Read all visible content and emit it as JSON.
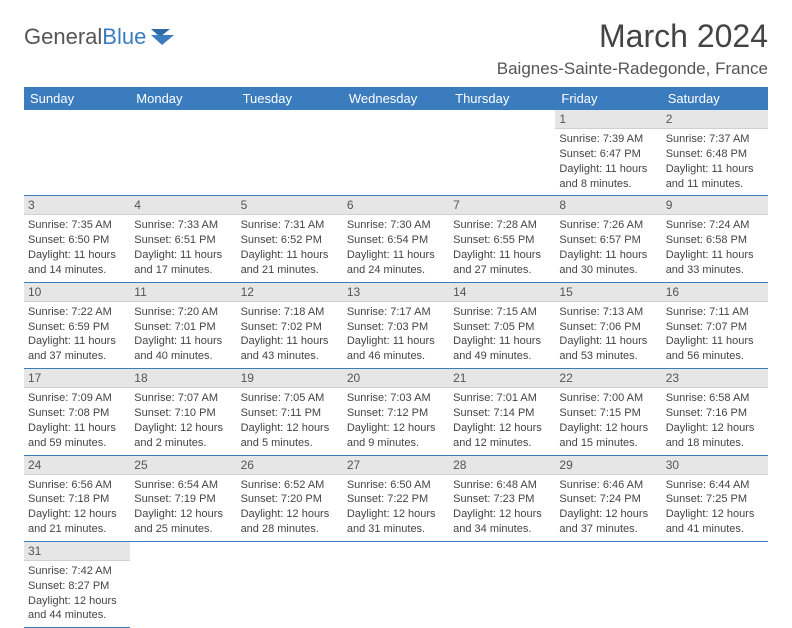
{
  "brand": {
    "part1": "General",
    "part2": "Blue"
  },
  "title": "March 2024",
  "location": "Baignes-Sainte-Radegonde, France",
  "colors": {
    "header_bg": "#3b7cbf",
    "header_fg": "#ffffff",
    "daynum_bg": "#e6e6e6",
    "row_border": "#3b7cbf",
    "text": "#444444"
  },
  "weekdays": [
    "Sunday",
    "Monday",
    "Tuesday",
    "Wednesday",
    "Thursday",
    "Friday",
    "Saturday"
  ],
  "days": [
    {
      "n": 1,
      "sunrise": "7:39 AM",
      "sunset": "6:47 PM",
      "daylight": "11 hours and 8 minutes."
    },
    {
      "n": 2,
      "sunrise": "7:37 AM",
      "sunset": "6:48 PM",
      "daylight": "11 hours and 11 minutes."
    },
    {
      "n": 3,
      "sunrise": "7:35 AM",
      "sunset": "6:50 PM",
      "daylight": "11 hours and 14 minutes."
    },
    {
      "n": 4,
      "sunrise": "7:33 AM",
      "sunset": "6:51 PM",
      "daylight": "11 hours and 17 minutes."
    },
    {
      "n": 5,
      "sunrise": "7:31 AM",
      "sunset": "6:52 PM",
      "daylight": "11 hours and 21 minutes."
    },
    {
      "n": 6,
      "sunrise": "7:30 AM",
      "sunset": "6:54 PM",
      "daylight": "11 hours and 24 minutes."
    },
    {
      "n": 7,
      "sunrise": "7:28 AM",
      "sunset": "6:55 PM",
      "daylight": "11 hours and 27 minutes."
    },
    {
      "n": 8,
      "sunrise": "7:26 AM",
      "sunset": "6:57 PM",
      "daylight": "11 hours and 30 minutes."
    },
    {
      "n": 9,
      "sunrise": "7:24 AM",
      "sunset": "6:58 PM",
      "daylight": "11 hours and 33 minutes."
    },
    {
      "n": 10,
      "sunrise": "7:22 AM",
      "sunset": "6:59 PM",
      "daylight": "11 hours and 37 minutes."
    },
    {
      "n": 11,
      "sunrise": "7:20 AM",
      "sunset": "7:01 PM",
      "daylight": "11 hours and 40 minutes."
    },
    {
      "n": 12,
      "sunrise": "7:18 AM",
      "sunset": "7:02 PM",
      "daylight": "11 hours and 43 minutes."
    },
    {
      "n": 13,
      "sunrise": "7:17 AM",
      "sunset": "7:03 PM",
      "daylight": "11 hours and 46 minutes."
    },
    {
      "n": 14,
      "sunrise": "7:15 AM",
      "sunset": "7:05 PM",
      "daylight": "11 hours and 49 minutes."
    },
    {
      "n": 15,
      "sunrise": "7:13 AM",
      "sunset": "7:06 PM",
      "daylight": "11 hours and 53 minutes."
    },
    {
      "n": 16,
      "sunrise": "7:11 AM",
      "sunset": "7:07 PM",
      "daylight": "11 hours and 56 minutes."
    },
    {
      "n": 17,
      "sunrise": "7:09 AM",
      "sunset": "7:08 PM",
      "daylight": "11 hours and 59 minutes."
    },
    {
      "n": 18,
      "sunrise": "7:07 AM",
      "sunset": "7:10 PM",
      "daylight": "12 hours and 2 minutes."
    },
    {
      "n": 19,
      "sunrise": "7:05 AM",
      "sunset": "7:11 PM",
      "daylight": "12 hours and 5 minutes."
    },
    {
      "n": 20,
      "sunrise": "7:03 AM",
      "sunset": "7:12 PM",
      "daylight": "12 hours and 9 minutes."
    },
    {
      "n": 21,
      "sunrise": "7:01 AM",
      "sunset": "7:14 PM",
      "daylight": "12 hours and 12 minutes."
    },
    {
      "n": 22,
      "sunrise": "7:00 AM",
      "sunset": "7:15 PM",
      "daylight": "12 hours and 15 minutes."
    },
    {
      "n": 23,
      "sunrise": "6:58 AM",
      "sunset": "7:16 PM",
      "daylight": "12 hours and 18 minutes."
    },
    {
      "n": 24,
      "sunrise": "6:56 AM",
      "sunset": "7:18 PM",
      "daylight": "12 hours and 21 minutes."
    },
    {
      "n": 25,
      "sunrise": "6:54 AM",
      "sunset": "7:19 PM",
      "daylight": "12 hours and 25 minutes."
    },
    {
      "n": 26,
      "sunrise": "6:52 AM",
      "sunset": "7:20 PM",
      "daylight": "12 hours and 28 minutes."
    },
    {
      "n": 27,
      "sunrise": "6:50 AM",
      "sunset": "7:22 PM",
      "daylight": "12 hours and 31 minutes."
    },
    {
      "n": 28,
      "sunrise": "6:48 AM",
      "sunset": "7:23 PM",
      "daylight": "12 hours and 34 minutes."
    },
    {
      "n": 29,
      "sunrise": "6:46 AM",
      "sunset": "7:24 PM",
      "daylight": "12 hours and 37 minutes."
    },
    {
      "n": 30,
      "sunrise": "6:44 AM",
      "sunset": "7:25 PM",
      "daylight": "12 hours and 41 minutes."
    },
    {
      "n": 31,
      "sunrise": "7:42 AM",
      "sunset": "8:27 PM",
      "daylight": "12 hours and 44 minutes."
    }
  ],
  "layout": {
    "first_weekday_index": 5,
    "rows": 6,
    "cols": 7
  },
  "labels": {
    "sunrise": "Sunrise:",
    "sunset": "Sunset:",
    "daylight": "Daylight:"
  }
}
